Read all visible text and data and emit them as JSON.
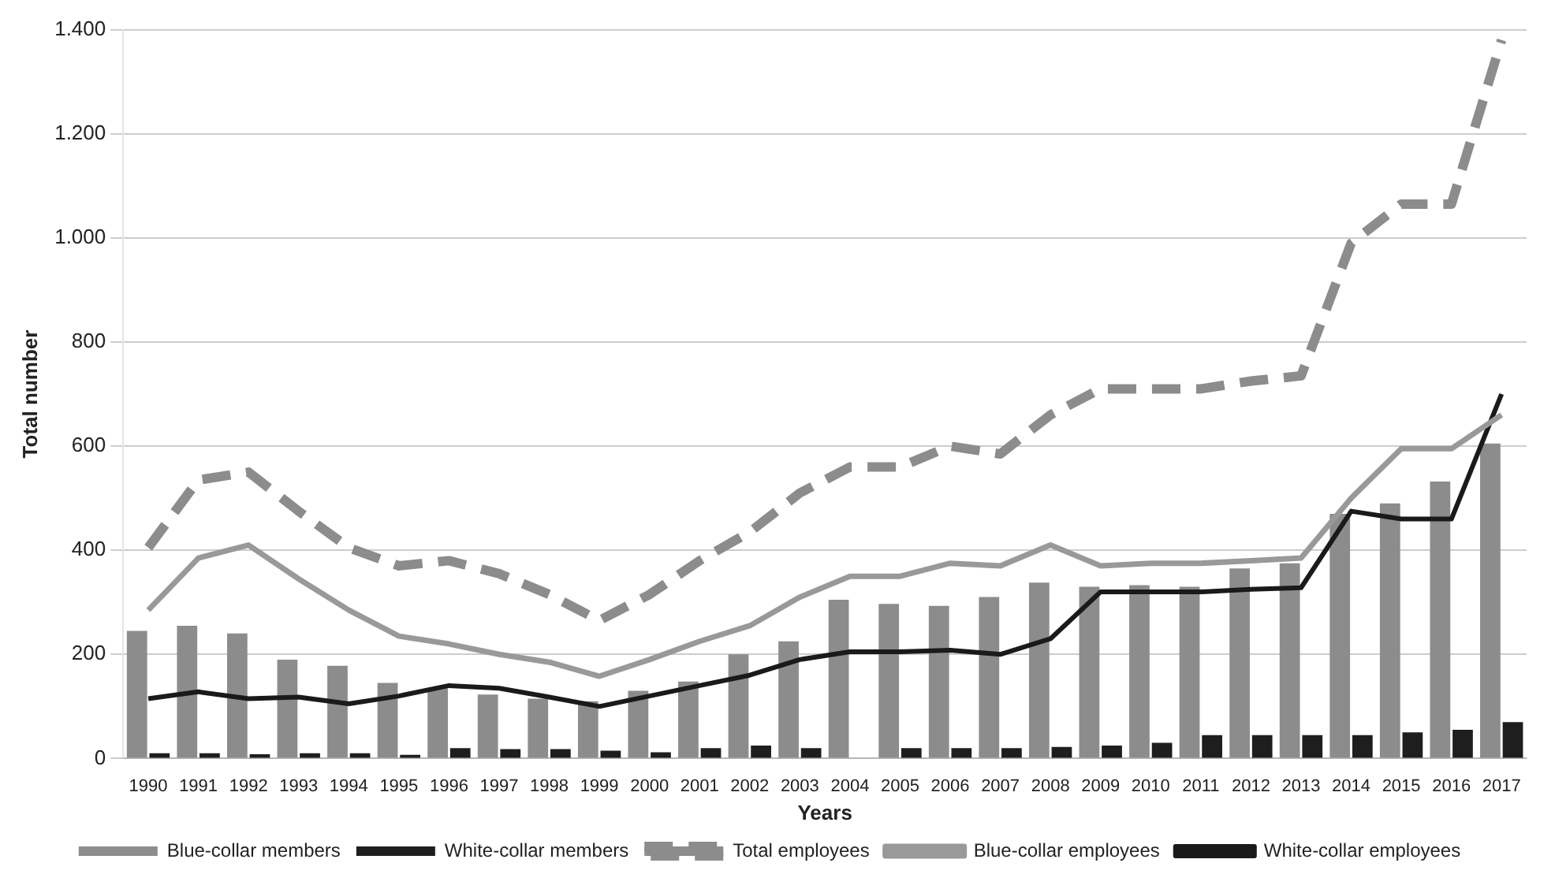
{
  "chart_data": {
    "type": "bar",
    "xlabel": "Years",
    "ylabel": "Total number",
    "categories": [
      "1990",
      "1991",
      "1992",
      "1993",
      "1994",
      "1995",
      "1996",
      "1997",
      "1998",
      "1999",
      "2000",
      "2001",
      "2002",
      "2003",
      "2004",
      "2005",
      "2006",
      "2007",
      "2008",
      "2009",
      "2010",
      "2011",
      "2012",
      "2013",
      "2014",
      "2015",
      "2016",
      "2017"
    ],
    "series": [
      {
        "name": "Blue-collar members",
        "type": "bar",
        "color": "#8c8c8c",
        "values": [
          245,
          255,
          240,
          190,
          178,
          145,
          135,
          123,
          115,
          110,
          130,
          148,
          200,
          225,
          305,
          297,
          293,
          310,
          338,
          330,
          333,
          330,
          365,
          375,
          470,
          490,
          532,
          605
        ]
      },
      {
        "name": "White-collar members",
        "type": "bar",
        "color": "#1e1e1e",
        "values": [
          10,
          10,
          8,
          10,
          10,
          7,
          20,
          18,
          18,
          15,
          12,
          20,
          25,
          20,
          null,
          20,
          20,
          20,
          22,
          25,
          30,
          45,
          45,
          45,
          45,
          50,
          55,
          70
        ]
      },
      {
        "name": "Total employees",
        "type": "line",
        "line_style": "dashed",
        "color": "#8c8c8c",
        "values": [
          405,
          535,
          550,
          475,
          405,
          370,
          380,
          355,
          315,
          265,
          315,
          380,
          435,
          510,
          560,
          560,
          600,
          585,
          660,
          710,
          710,
          710,
          725,
          735,
          990,
          1065,
          1065,
          1380
        ]
      },
      {
        "name": "Blue-collar employees",
        "type": "line",
        "line_style": "solid",
        "color": "#999999",
        "values": [
          285,
          385,
          410,
          345,
          285,
          235,
          220,
          200,
          185,
          158,
          190,
          225,
          255,
          310,
          350,
          350,
          375,
          370,
          410,
          370,
          375,
          375,
          380,
          385,
          500,
          595,
          595,
          660
        ]
      },
      {
        "name": "White-collar employees",
        "type": "line",
        "line_style": "solid",
        "color": "#1a1a1a",
        "values": [
          115,
          128,
          115,
          118,
          105,
          120,
          140,
          135,
          118,
          100,
          120,
          140,
          160,
          190,
          205,
          205,
          208,
          200,
          230,
          320,
          320,
          320,
          325,
          328,
          475,
          460,
          460,
          700
        ]
      }
    ],
    "ylim": [
      0,
      1400
    ],
    "yticks": [
      0,
      200,
      400,
      600,
      800,
      {
        "value": 1000,
        "label": "1.000"
      },
      {
        "value": 1200,
        "label": "1.200"
      },
      {
        "value": 1400,
        "label": "1.400"
      }
    ],
    "grid": "y",
    "legend": "bottom",
    "marker": "none"
  }
}
